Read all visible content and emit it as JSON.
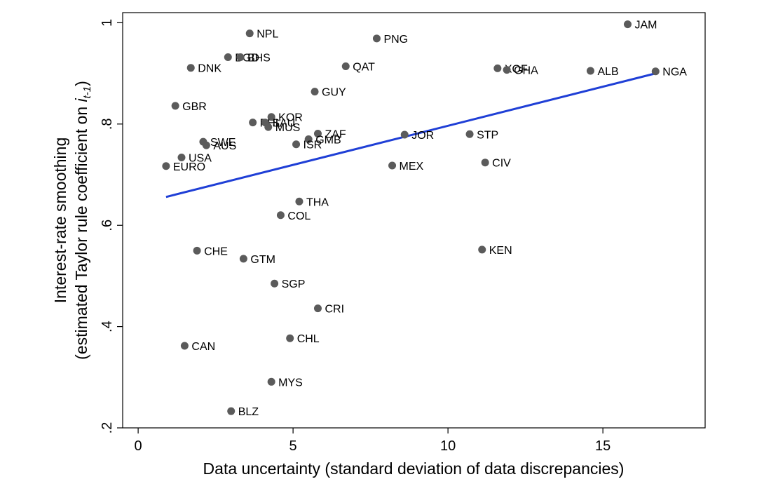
{
  "chart_data": {
    "type": "scatter",
    "xlabel": "Data uncertainty (standard deviation of data discrepancies)",
    "ylabel_line1": "Interest-rate smoothing",
    "ylabel_line2_prefix": "(estimated Taylor rule coefficient on ",
    "ylabel_line2_var": "i",
    "ylabel_line2_sub": "t-1",
    "ylabel_line2_suffix": ")",
    "xlim": [
      -0.5,
      18.3
    ],
    "ylim": [
      0.2,
      1.02
    ],
    "xticks": [
      0,
      5,
      10,
      15
    ],
    "xtick_labels": [
      "0",
      "5",
      "10",
      "15"
    ],
    "yticks": [
      0.2,
      0.4,
      0.6,
      0.8,
      1.0
    ],
    "ytick_labels": [
      ".2",
      ".4",
      ".6",
      ".8",
      "1"
    ],
    "colors": {
      "marker": "#5b5b5b",
      "fit_line": "#1f3fd6",
      "axis": "#000000"
    },
    "fit_line": {
      "x": [
        0.9,
        16.7
      ],
      "y": [
        0.656,
        0.9
      ]
    },
    "points": [
      {
        "label": "JAM",
        "x": 15.8,
        "y": 0.997
      },
      {
        "label": "NPL",
        "x": 3.6,
        "y": 0.979
      },
      {
        "label": "PNG",
        "x": 7.7,
        "y": 0.969
      },
      {
        "label": "BGD",
        "x": 2.9,
        "y": 0.932
      },
      {
        "label": "BHS",
        "x": 3.3,
        "y": 0.932
      },
      {
        "label": "QAT",
        "x": 6.7,
        "y": 0.914
      },
      {
        "label": "DNK",
        "x": 1.7,
        "y": 0.911
      },
      {
        "label": "XOF",
        "x": 11.6,
        "y": 0.91
      },
      {
        "label": "GHA",
        "x": 11.9,
        "y": 0.907
      },
      {
        "label": "ALB",
        "x": 14.6,
        "y": 0.905
      },
      {
        "label": "NGA",
        "x": 16.7,
        "y": 0.904
      },
      {
        "label": "GUY",
        "x": 5.7,
        "y": 0.864
      },
      {
        "label": "GBR",
        "x": 1.2,
        "y": 0.836
      },
      {
        "label": "KOR",
        "x": 4.3,
        "y": 0.814
      },
      {
        "label": "PHL",
        "x": 3.7,
        "y": 0.803
      },
      {
        "label": "SAU",
        "x": 4.1,
        "y": 0.803
      },
      {
        "label": "MUS",
        "x": 4.2,
        "y": 0.794
      },
      {
        "label": "ZAF",
        "x": 5.8,
        "y": 0.781
      },
      {
        "label": "JOR",
        "x": 8.6,
        "y": 0.779
      },
      {
        "label": "STP",
        "x": 10.7,
        "y": 0.78
      },
      {
        "label": "GMB",
        "x": 5.5,
        "y": 0.77
      },
      {
        "label": "SWE",
        "x": 2.1,
        "y": 0.765
      },
      {
        "label": "ISR",
        "x": 5.1,
        "y": 0.76
      },
      {
        "label": "AUS",
        "x": 2.2,
        "y": 0.758
      },
      {
        "label": "USA",
        "x": 1.4,
        "y": 0.734
      },
      {
        "label": "CIV",
        "x": 11.2,
        "y": 0.724
      },
      {
        "label": "MEX",
        "x": 8.2,
        "y": 0.718
      },
      {
        "label": "EURO",
        "x": 0.9,
        "y": 0.717
      },
      {
        "label": "THA",
        "x": 5.2,
        "y": 0.647
      },
      {
        "label": "COL",
        "x": 4.6,
        "y": 0.62
      },
      {
        "label": "KEN",
        "x": 11.1,
        "y": 0.552
      },
      {
        "label": "CHE",
        "x": 1.9,
        "y": 0.55
      },
      {
        "label": "GTM",
        "x": 3.4,
        "y": 0.534
      },
      {
        "label": "SGP",
        "x": 4.4,
        "y": 0.485
      },
      {
        "label": "CRI",
        "x": 5.8,
        "y": 0.436
      },
      {
        "label": "CHL",
        "x": 4.9,
        "y": 0.377
      },
      {
        "label": "CAN",
        "x": 1.5,
        "y": 0.362
      },
      {
        "label": "MYS",
        "x": 4.3,
        "y": 0.291
      },
      {
        "label": "BLZ",
        "x": 3.0,
        "y": 0.233
      }
    ]
  }
}
